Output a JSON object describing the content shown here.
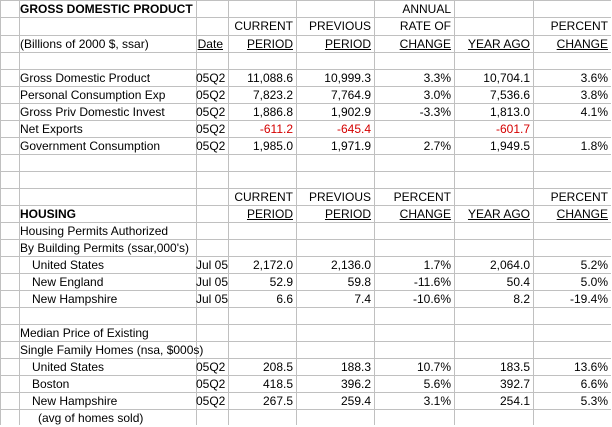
{
  "gdp": {
    "title": "GROSS DOMESTIC PRODUCT",
    "subtitle": "(Billions of 2000 $, ssar)",
    "date_header": "Date",
    "headers": {
      "annual": "ANNUAL",
      "current_1": "CURRENT",
      "current_2": "PERIOD",
      "previous_1": "PREVIOUS",
      "previous_2": "PERIOD",
      "rate_1": "RATE OF",
      "rate_2": "CHANGE",
      "year_ago": "YEAR AGO",
      "percent_1": "PERCENT",
      "percent_2": "CHANGE"
    },
    "rows": [
      {
        "label": "Gross Domestic Product",
        "date": "05Q2",
        "current": "11,088.6",
        "previous": "10,999.3",
        "rate": "3.3%",
        "year_ago": "10,704.1",
        "pct": "3.6%"
      },
      {
        "label": "Personal Consumption Exp",
        "date": "05Q2",
        "current": "7,823.2",
        "previous": "7,764.9",
        "rate": "3.0%",
        "year_ago": "7,536.6",
        "pct": "3.8%"
      },
      {
        "label": "Gross Priv Domestic Invest",
        "date": "05Q2",
        "current": "1,886.8",
        "previous": "1,902.9",
        "rate": "-3.3%",
        "year_ago": "1,813.0",
        "pct": "4.1%"
      },
      {
        "label": "Net Exports",
        "date": "05Q2",
        "current": "-611.2",
        "previous": "-645.4",
        "rate": "",
        "year_ago": "-601.7",
        "pct": ""
      },
      {
        "label": "Government Consumption",
        "date": "05Q2",
        "current": "1,985.0",
        "previous": "1,971.9",
        "rate": "2.7%",
        "year_ago": "1,949.5",
        "pct": "1.8%"
      }
    ]
  },
  "housing": {
    "title": "HOUSING",
    "headers": {
      "current_1": "CURRENT",
      "current_2": "PERIOD",
      "previous_1": "PREVIOUS",
      "previous_2": "PERIOD",
      "percent_1": "PERCENT",
      "percent_2": "CHANGE",
      "year_ago": "YEAR AGO",
      "pct_1": "PERCENT",
      "pct_2": "CHANGE"
    },
    "permits_label_1": "Housing Permits Authorized",
    "permits_label_2": "By Building Permits (ssar,000's)",
    "permits_rows": [
      {
        "label": "United States",
        "date": "Jul 05",
        "current": "2,172.0",
        "previous": "2,136.0",
        "pct": "1.7%",
        "year_ago": "2,064.0",
        "pct2": "5.2%"
      },
      {
        "label": "New England",
        "date": "Jul 05",
        "current": "52.9",
        "previous": "59.8",
        "pct": "-11.6%",
        "year_ago": "50.4",
        "pct2": "5.0%"
      },
      {
        "label": "New Hampshire",
        "date": "Jul 05",
        "current": "6.6",
        "previous": "7.4",
        "pct": "-10.6%",
        "year_ago": "8.2",
        "pct2": "-19.4%"
      }
    ],
    "median_label_1": "Median Price of Existing",
    "median_label_2": "Single Family Homes (nsa, $000s)",
    "median_rows": [
      {
        "label": "United States",
        "date": "05Q2",
        "current": "208.5",
        "previous": "188.3",
        "pct": "10.7%",
        "year_ago": "183.5",
        "pct2": "13.6%"
      },
      {
        "label": "Boston",
        "date": "05Q2",
        "current": "418.5",
        "previous": "396.2",
        "pct": "5.6%",
        "year_ago": "392.7",
        "pct2": "6.6%"
      },
      {
        "label": "New Hampshire",
        "date": "05Q2",
        "current": "267.5",
        "previous": "259.4",
        "pct": "3.1%",
        "year_ago": "254.1",
        "pct2": "5.3%"
      }
    ],
    "footnote": "(avg of homes sold)"
  },
  "colors": {
    "negative": "#d40000",
    "grid": "#c0c0c0",
    "text": "#000000"
  }
}
